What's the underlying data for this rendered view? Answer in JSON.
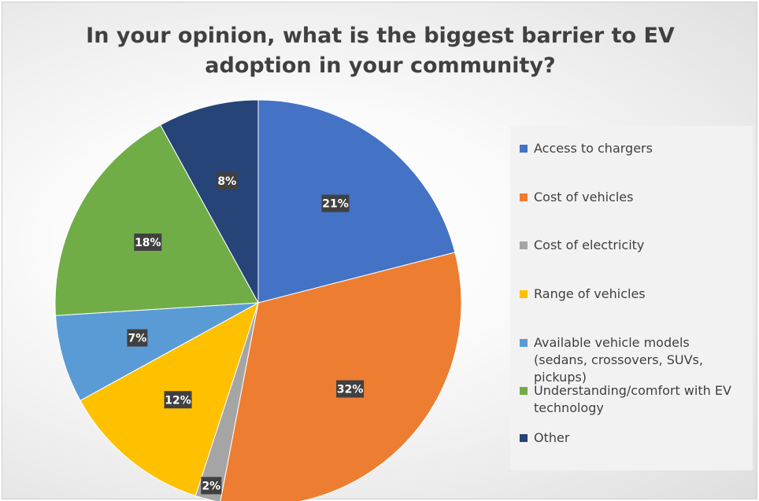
{
  "chart_data": {
    "type": "pie",
    "title_lines": [
      "In your opinion, what is the biggest barrier to EV",
      "adoption in your community?"
    ],
    "legend_position": "right",
    "slices": [
      {
        "label": "Access to chargers",
        "value": 21,
        "value_label": "21%",
        "color": "#4472c4"
      },
      {
        "label": "Cost of vehicles",
        "value": 32,
        "value_label": "32%",
        "color": "#ed7d31"
      },
      {
        "label": "Cost of electricity",
        "value": 2,
        "value_label": "2%",
        "color": "#a5a5a5"
      },
      {
        "label": "Range of vehicles",
        "value": 12,
        "value_label": "12%",
        "color": "#ffc000"
      },
      {
        "label": "Available vehicle models (sedans, crossovers, SUVs, pickups)",
        "value": 7,
        "value_label": "7%",
        "color": "#5b9bd5"
      },
      {
        "label": "Understanding/comfort with EV technology",
        "value": 18,
        "value_label": "18%",
        "color": "#70ad47"
      },
      {
        "label": "Other",
        "value": 8,
        "value_label": "8%",
        "color": "#264478"
      }
    ]
  }
}
